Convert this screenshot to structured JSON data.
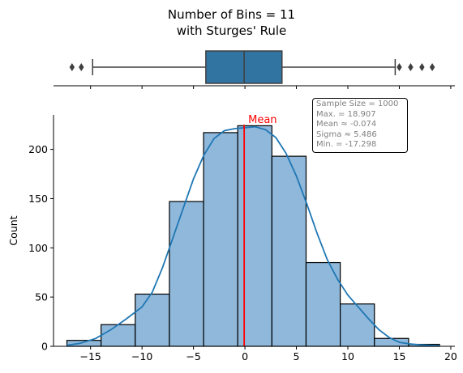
{
  "chart_data": {
    "type": "bar",
    "title": "Number of Bins = 11",
    "subtitle": "with Sturges' Rule",
    "xlabel": "",
    "ylabel": "Count",
    "xlim": [
      -18.6,
      20.4
    ],
    "ylim": [
      0,
      235
    ],
    "xticks": [
      -15,
      -10,
      -5,
      0,
      5,
      10,
      15,
      20
    ],
    "yticks": [
      0,
      50,
      100,
      150,
      200
    ],
    "bin_edges": [
      -17.298,
      -13.98,
      -10.66,
      -7.34,
      -4.02,
      -0.7,
      2.62,
      5.94,
      9.26,
      12.58,
      15.9,
      18.907
    ],
    "values": [
      6,
      22,
      53,
      147,
      217,
      224,
      193,
      85,
      43,
      8,
      2
    ],
    "kde": {
      "x": [
        -17.3,
        -16,
        -14.5,
        -13,
        -11.5,
        -10,
        -9,
        -8,
        -7,
        -6,
        -5,
        -4,
        -3,
        -2,
        -1,
        0,
        1,
        2,
        3,
        4,
        5,
        6,
        7,
        8,
        9,
        10,
        11,
        12,
        13,
        14,
        15,
        16,
        17,
        18,
        18.9
      ],
      "y": [
        1,
        3,
        8,
        17,
        28,
        40,
        55,
        80,
        110,
        140,
        170,
        194,
        211,
        219,
        221,
        222,
        223,
        220,
        212,
        196,
        173,
        145,
        115,
        88,
        68,
        52,
        40,
        28,
        17,
        9,
        4,
        2.5,
        1.5,
        1,
        0.5
      ]
    },
    "mean_line": {
      "x": -0.074,
      "label": "Mean",
      "color": "#ff0000"
    },
    "boxplot": {
      "q1": -3.8,
      "median": -0.074,
      "q3": 3.6,
      "whisker_low": -14.8,
      "whisker_high": 14.6,
      "outliers": [
        -16.8,
        -15.9,
        15.0,
        16.1,
        17.2,
        18.2
      ],
      "color": "#3274a1"
    },
    "stats_box": [
      "Sample Size = 1000",
      "Max. = 18.907",
      "Mean ≈ -0.074",
      "Sigma ≈ 5.486",
      "Min. = -17.298"
    ],
    "colors": {
      "bar_fill": "#8fb8db",
      "bar_edge": "#000000",
      "kde": "#1f77b4",
      "mean": "#ff0000",
      "box": "#3274a1"
    }
  }
}
